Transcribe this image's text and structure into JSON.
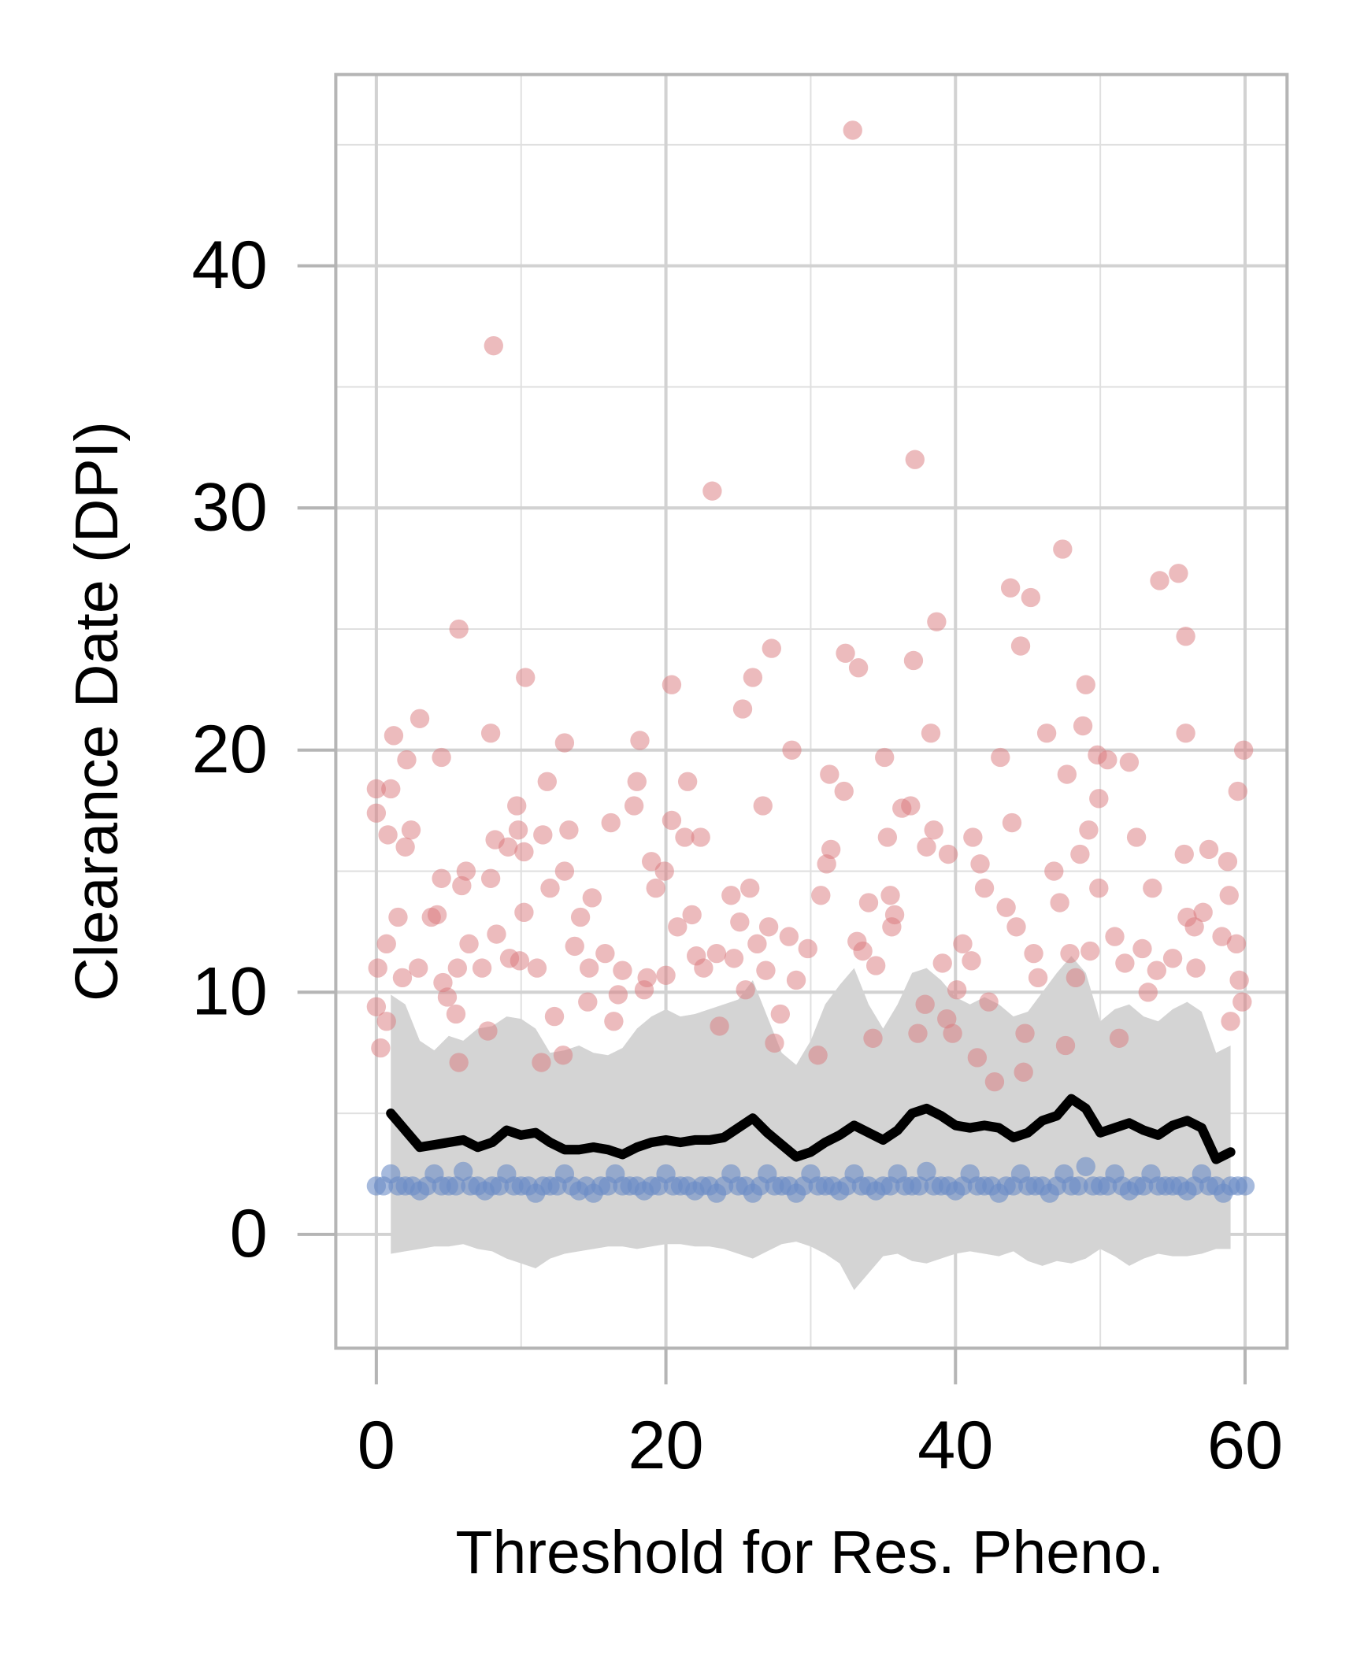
{
  "chart_data": {
    "type": "scatter",
    "xlabel": "Threshold for Res. Pheno.",
    "ylabel": "Clearance Date (DPI)",
    "xlim": [
      -2.8,
      62.9
    ],
    "ylim": [
      -4.7,
      47.9
    ],
    "xticks": [
      0,
      20,
      40,
      60
    ],
    "yticks": [
      0,
      10,
      20,
      30,
      40
    ],
    "grid": true,
    "series": [
      {
        "type": "band",
        "color": "#d4d4d4",
        "x": [
          1,
          2,
          3,
          4,
          5,
          6,
          7,
          8,
          9,
          10,
          11,
          12,
          13,
          14,
          15,
          16,
          17,
          18,
          19,
          20,
          21,
          22,
          23,
          24,
          25,
          26,
          27,
          28,
          29,
          30,
          31,
          32,
          33,
          34,
          35,
          36,
          37,
          38,
          39,
          40,
          41,
          42,
          43,
          44,
          45,
          46,
          47,
          48,
          49,
          50,
          51,
          52,
          53,
          54,
          55,
          56,
          57,
          58,
          59
        ],
        "upper": [
          9.9,
          9.5,
          8.0,
          7.6,
          8.2,
          8.0,
          8.5,
          8.6,
          9.0,
          8.9,
          8.5,
          7.5,
          7.6,
          7.8,
          7.5,
          7.4,
          7.7,
          8.5,
          9.0,
          9.3,
          9.0,
          9.1,
          9.3,
          9.5,
          9.7,
          10.5,
          9.0,
          7.5,
          7.0,
          8.0,
          9.5,
          10.3,
          11.0,
          9.5,
          8.5,
          9.5,
          10.8,
          11.0,
          10.5,
          9.8,
          9.5,
          9.8,
          9.5,
          9.0,
          9.2,
          10.0,
          10.8,
          11.5,
          10.8,
          8.8,
          9.3,
          9.5,
          9.0,
          8.8,
          9.3,
          9.6,
          9.2,
          7.5,
          7.8
        ],
        "lower": [
          -0.8,
          -0.7,
          -0.6,
          -0.5,
          -0.5,
          -0.4,
          -0.6,
          -0.7,
          -1.0,
          -1.2,
          -1.4,
          -1.0,
          -0.8,
          -0.7,
          -0.6,
          -0.5,
          -0.5,
          -0.6,
          -0.5,
          -0.4,
          -0.4,
          -0.5,
          -0.5,
          -0.6,
          -0.8,
          -1.0,
          -0.7,
          -0.4,
          -0.3,
          -0.5,
          -0.8,
          -1.2,
          -2.3,
          -1.6,
          -0.9,
          -0.8,
          -1.1,
          -1.2,
          -1.0,
          -0.8,
          -0.7,
          -0.8,
          -0.9,
          -0.7,
          -1.1,
          -1.3,
          -1.1,
          -1.2,
          -1.0,
          -0.6,
          -0.9,
          -1.3,
          -1.0,
          -0.8,
          -0.9,
          -0.9,
          -0.8,
          -0.6,
          -0.6
        ]
      },
      {
        "type": "scatter",
        "color": "#d9777b",
        "opacity": 0.5,
        "x": [
          0,
          0,
          0.1,
          0,
          0.3,
          0.7,
          1,
          0.8,
          0.7,
          1.2,
          1.5,
          1.8,
          2.0,
          2.1,
          2.4,
          3.0,
          2.9,
          3.8,
          4.2,
          4.5,
          4.5,
          4.6,
          4.9,
          5.5,
          5.7,
          5.7,
          5.9,
          6.2,
          5.6,
          6.4,
          7.3,
          7.7,
          7.9,
          7.9,
          8.1,
          8.2,
          8.3,
          9.1,
          9.2,
          9.7,
          9.8,
          10.2,
          10.3,
          10.2,
          9.9,
          11.1,
          11.4,
          11.5,
          11.8,
          12,
          12.3,
          12.9,
          13,
          13.3,
          13,
          13.7,
          14.1,
          14.6,
          14.9,
          14.7,
          15.8,
          16.2,
          16.4,
          16.7,
          17,
          17.8,
          18,
          18.2,
          18.5,
          18.7,
          19,
          19.3,
          19.9,
          20,
          20.4,
          20.4,
          20.8,
          21.3,
          21.5,
          21.8,
          22.1,
          22.4,
          22.6,
          23.2,
          23.5,
          23.7,
          24.5,
          24.7,
          25.1,
          25.3,
          25.5,
          25.8,
          26,
          26.3,
          26.7,
          26.9,
          27.3,
          27.5,
          27.1,
          27.9,
          28.5,
          28.7,
          29,
          29.8,
          30.5,
          30.7,
          31.1,
          31.3,
          31.4,
          32.3,
          32.4,
          32.9,
          33.2,
          33.3,
          33.6,
          34,
          34.3,
          34.5,
          35.1,
          35.3,
          35.5,
          35.6,
          35.8,
          36.3,
          36.9,
          37.1,
          37.2,
          37.4,
          37.9,
          38,
          38.3,
          38.5,
          38.7,
          39.1,
          39.4,
          39.5,
          39.8,
          40.1,
          40.5,
          41.1,
          41.2,
          41.5,
          41.7,
          42,
          42.3,
          42.7,
          43.1,
          43.5,
          43.8,
          43.9,
          44.2,
          44.5,
          44.7,
          44.8,
          45.2,
          45.4,
          45.7,
          46.3,
          46.8,
          47.2,
          47.4,
          47.6,
          47.7,
          47.9,
          48.3,
          48.6,
          48.8,
          49,
          49.2,
          49.3,
          49.8,
          49.9,
          49.9,
          50.5,
          51,
          51.3,
          51.7,
          52,
          52.5,
          52.9,
          53.3,
          53.6,
          53.9,
          54.1,
          55,
          55.4,
          55.8,
          55.9,
          55.9,
          56,
          56.5,
          56.6,
          57.1,
          57.5,
          58.4,
          58.8,
          58.9,
          59,
          59.4,
          59.5,
          59.6,
          59.8,
          59.9
        ],
        "values": [
          18.4,
          17.4,
          11,
          9.4,
          7.7,
          8.8,
          18.4,
          16.5,
          12,
          20.6,
          13.1,
          10.6,
          16,
          19.6,
          16.7,
          21.3,
          11,
          13.1,
          13.2,
          19.7,
          14.7,
          10.4,
          9.8,
          9.1,
          7.1,
          25,
          14.4,
          15,
          11,
          12,
          11,
          8.4,
          20.7,
          14.7,
          36.7,
          16.3,
          12.4,
          16,
          11.4,
          17.7,
          16.7,
          15.8,
          23,
          13.3,
          11.3,
          11,
          7.1,
          16.5,
          18.7,
          14.3,
          9,
          7.4,
          20.3,
          16.7,
          15,
          11.9,
          13.1,
          9.6,
          13.9,
          11,
          11.6,
          17,
          8.8,
          9.9,
          10.9,
          17.7,
          18.7,
          20.4,
          10.1,
          10.6,
          15.4,
          14.3,
          15,
          10.7,
          22.7,
          17.1,
          12.7,
          16.4,
          18.7,
          13.2,
          11.5,
          16.4,
          11,
          30.7,
          11.6,
          8.6,
          14,
          11.4,
          12.9,
          21.7,
          10.1,
          14.3,
          23,
          12,
          17.7,
          10.9,
          24.2,
          7.9,
          12.7,
          9.1,
          12.3,
          20,
          10.5,
          11.8,
          7.4,
          14,
          15.3,
          19,
          15.9,
          18.3,
          24,
          45.6,
          12.1,
          23.4,
          11.7,
          13.7,
          8.1,
          11.1,
          19.7,
          16.4,
          14,
          12.7,
          13.2,
          17.6,
          17.7,
          23.7,
          32,
          8.3,
          9.5,
          16,
          20.7,
          16.7,
          25.3,
          11.2,
          8.9,
          15.7,
          8.3,
          10.1,
          12,
          11.3,
          16.4,
          7.3,
          15.3,
          14.3,
          9.6,
          6.3,
          19.7,
          13.5,
          26.7,
          17,
          12.7,
          24.3,
          6.7,
          8.3,
          26.3,
          11.6,
          10.6,
          20.7,
          15,
          13.7,
          28.3,
          7.8,
          19,
          11.6,
          10.6,
          15.7,
          21,
          22.7,
          16.7,
          11.7,
          19.8,
          18,
          14.3,
          19.6,
          12.3,
          8.1,
          11.2,
          19.5,
          16.4,
          11.8,
          10,
          14.3,
          10.9,
          27,
          11.4,
          27.3,
          15.7,
          24.7,
          20.7,
          13.1,
          12.7,
          11,
          13.3,
          15.9,
          12.3,
          15.4,
          14,
          8.8,
          12,
          18.3,
          10.5,
          9.6,
          20
        ]
      },
      {
        "type": "scatter",
        "color": "#6b8cc7",
        "opacity": 0.6,
        "x": [
          0,
          0.5,
          1,
          1.5,
          2,
          2.5,
          3,
          3.5,
          4,
          4.5,
          5,
          5.5,
          6,
          6.5,
          7,
          7.5,
          8,
          8.5,
          9,
          9.5,
          10,
          10.5,
          11,
          11.5,
          12,
          12.5,
          13,
          13.5,
          14,
          14.5,
          15,
          15.5,
          16,
          16.5,
          17,
          17.5,
          18,
          18.5,
          19,
          19.5,
          20,
          20.5,
          21,
          21.5,
          22,
          22.5,
          23,
          23.5,
          24,
          24.5,
          25,
          25.5,
          26,
          26.5,
          27,
          27.5,
          28,
          28.5,
          29,
          29.5,
          30,
          30.5,
          31,
          31.5,
          32,
          32.5,
          33,
          33.5,
          34,
          34.5,
          35,
          35.5,
          36,
          36.5,
          37,
          37.5,
          38,
          38.5,
          39,
          39.5,
          40,
          40.5,
          41,
          41.5,
          42,
          42.5,
          43,
          43.5,
          44,
          44.5,
          45,
          45.5,
          46,
          46.5,
          47,
          47.5,
          48,
          48.5,
          49,
          49.5,
          50,
          50.5,
          51,
          51.5,
          52,
          52.5,
          53,
          53.5,
          54,
          54.5,
          55,
          55.5,
          56,
          56.5,
          57,
          57.5,
          58,
          58.5,
          59,
          59.5,
          60
        ],
        "values": [
          2,
          2,
          2.5,
          2,
          2,
          2,
          1.8,
          2,
          2.5,
          2,
          2,
          2,
          2.6,
          2,
          2,
          1.8,
          2,
          2,
          2.5,
          2,
          2,
          2,
          1.7,
          2,
          2,
          2,
          2.5,
          2,
          1.8,
          2,
          1.7,
          2,
          2,
          2.5,
          2,
          2,
          2,
          1.8,
          2,
          2,
          2.5,
          2,
          2,
          2,
          1.8,
          2,
          2,
          1.7,
          2,
          2.5,
          2,
          2,
          1.7,
          2,
          2.5,
          2,
          2,
          2,
          1.7,
          2,
          2.5,
          2,
          2,
          2,
          1.8,
          2,
          2.5,
          2,
          2,
          1.8,
          2,
          2,
          2.5,
          2,
          2,
          2,
          2.6,
          2,
          2,
          2,
          1.8,
          2,
          2.5,
          2,
          2,
          2,
          1.7,
          2,
          2,
          2.5,
          2,
          2,
          2,
          1.7,
          2,
          2.5,
          2,
          2,
          2.8,
          2,
          2,
          2,
          2.5,
          2,
          1.8,
          2,
          2,
          2.5,
          2,
          2,
          2,
          2,
          1.8,
          2,
          2.5,
          2,
          2,
          1.7,
          2,
          2,
          2
        ]
      },
      {
        "type": "line",
        "color": "#000000",
        "x": [
          1,
          2,
          3,
          4,
          5,
          6,
          7,
          8,
          9,
          10,
          11,
          12,
          13,
          14,
          15,
          16,
          17,
          18,
          19,
          20,
          21,
          22,
          23,
          24,
          25,
          26,
          27,
          28,
          29,
          30,
          31,
          32,
          33,
          34,
          35,
          36,
          37,
          38,
          39,
          40,
          41,
          42,
          43,
          44,
          45,
          46,
          47,
          48,
          49,
          50,
          51,
          52,
          53,
          54,
          55,
          56,
          57,
          58,
          59
        ],
        "values": [
          5.0,
          4.3,
          3.6,
          3.7,
          3.8,
          3.9,
          3.6,
          3.8,
          4.3,
          4.1,
          4.2,
          3.8,
          3.5,
          3.5,
          3.6,
          3.5,
          3.3,
          3.6,
          3.8,
          3.9,
          3.8,
          3.9,
          3.9,
          4.0,
          4.4,
          4.8,
          4.2,
          3.7,
          3.2,
          3.4,
          3.8,
          4.1,
          4.5,
          4.2,
          3.9,
          4.3,
          5.0,
          5.2,
          4.9,
          4.5,
          4.4,
          4.5,
          4.4,
          4.0,
          4.2,
          4.7,
          4.9,
          5.6,
          5.2,
          4.2,
          4.4,
          4.6,
          4.3,
          4.1,
          4.5,
          4.7,
          4.4,
          3.1,
          3.4
        ]
      }
    ]
  }
}
